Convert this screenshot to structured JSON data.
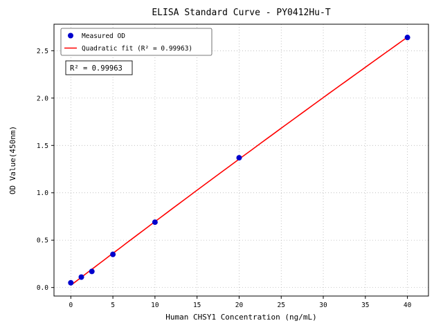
{
  "figure": {
    "title": "ELISA Standard Curve - PY0412Hu-T"
  },
  "chart_data": {
    "type": "scatter",
    "title": "ELISA Standard Curve - PY0412Hu-T",
    "xlabel": "Human CHSY1 Concentration (ng/mL)",
    "ylabel": "OD Value(450nm)",
    "xlim": [
      -2,
      42.5
    ],
    "ylim": [
      -0.09,
      2.78
    ],
    "xticks": [
      0,
      5,
      10,
      15,
      20,
      25,
      30,
      35,
      40
    ],
    "yticks": [
      0.0,
      0.5,
      1.0,
      1.5,
      2.0,
      2.5
    ],
    "grid": true,
    "fit_type": "quadratic",
    "r_squared": 0.99963,
    "annotation": {
      "text": "R² = 0.99963"
    },
    "legend": {
      "position": "upper-left",
      "items": [
        {
          "label": "Measured OD",
          "marker": "dot",
          "color": "#0000cd"
        },
        {
          "label": "Quadratic fit (R² = 0.99963)",
          "marker": "line",
          "color": "#ff0000"
        }
      ]
    },
    "series": [
      {
        "name": "Measured OD",
        "type": "scatter",
        "color": "#0000cd",
        "x": [
          0,
          1.25,
          2.5,
          5,
          10,
          20,
          40
        ],
        "y": [
          0.05,
          0.11,
          0.17,
          0.35,
          0.69,
          1.37,
          2.64
        ]
      },
      {
        "name": "Quadratic fit",
        "type": "fit-line",
        "color": "#ff0000"
      }
    ],
    "colors": {
      "points": "#0000cd",
      "fit_line": "#ff0000",
      "grid": "#aaaaaa",
      "axis": "#000000"
    }
  }
}
